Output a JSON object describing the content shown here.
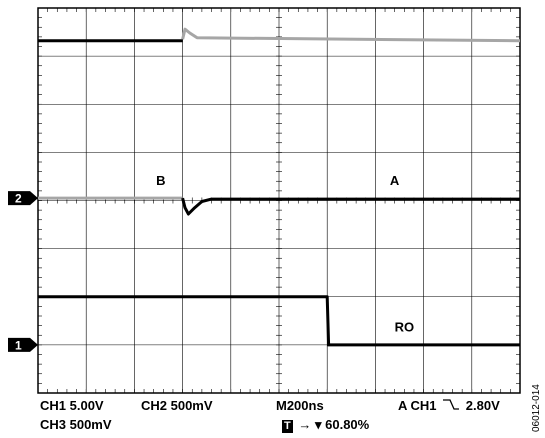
{
  "chart_data": {
    "type": "line",
    "time_per_div": "200ns",
    "x_range_divisions": [
      0,
      10
    ],
    "y_range_divisions": [
      0,
      8
    ],
    "grid": true,
    "series": [
      {
        "name": "",
        "color": "#000000",
        "points": [
          [
            0,
            7.32
          ],
          [
            3.0,
            7.32
          ],
          [
            3.0,
            7.32
          ]
        ]
      },
      {
        "name": "",
        "color": "#a6a6a6",
        "points": [
          [
            3.0,
            7.35
          ],
          [
            3.05,
            7.56
          ],
          [
            3.15,
            7.48
          ],
          [
            3.3,
            7.38
          ],
          [
            10,
            7.32
          ]
        ]
      },
      {
        "name": "",
        "color": "#a6a6a6",
        "points": [
          [
            0,
            4.05
          ],
          [
            3.0,
            4.05
          ]
        ]
      },
      {
        "name": "",
        "color": "#000000",
        "points": [
          [
            3.0,
            4.05
          ],
          [
            3.05,
            3.85
          ],
          [
            3.12,
            3.72
          ],
          [
            3.25,
            3.85
          ],
          [
            3.4,
            3.98
          ],
          [
            3.6,
            4.03
          ],
          [
            10,
            4.03
          ]
        ]
      },
      {
        "name": "",
        "color": "#000000",
        "points": [
          [
            0,
            2.0
          ],
          [
            6.0,
            2.0
          ],
          [
            6.03,
            1.0
          ],
          [
            10,
            1.0
          ]
        ]
      }
    ],
    "annotations": [
      {
        "label": "B",
        "x": 2.45,
        "y": 4.32
      },
      {
        "label": "A",
        "x": 7.3,
        "y": 4.32
      },
      {
        "label": "RO",
        "x": 7.4,
        "y": 1.28
      }
    ],
    "channel_markers": [
      {
        "label": "2",
        "level": 4.05
      },
      {
        "label": "1",
        "level": 1.0
      }
    ]
  },
  "readout": {
    "ch1": "CH1  5.00V",
    "ch2": "CH2  500mV",
    "timebase": "M200ns",
    "trigger": "A  CH1",
    "trigger_level": "2.80V",
    "ch3": "CH3  500mV",
    "trigger_marker": "T",
    "trigger_position": "60.80%"
  },
  "figure_id": "06012-014"
}
